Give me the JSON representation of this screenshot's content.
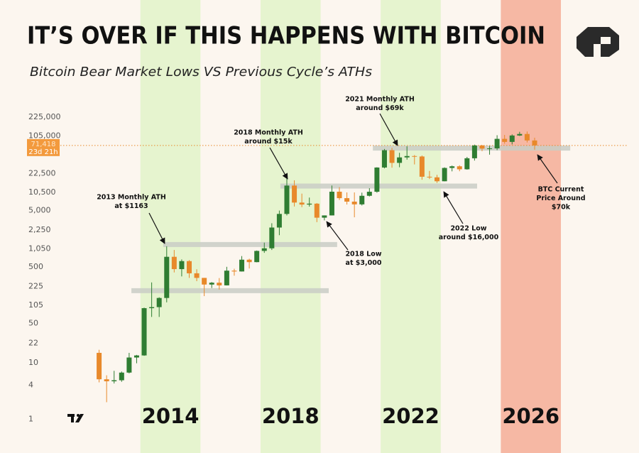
{
  "chart_data": {
    "type": "candlestick",
    "title": "IT’S OVER IF THIS HAPPENS WITH BITCOIN",
    "subtitle": "Bitcoin Bear Market Lows VS Previous Cycle’s ATHs",
    "log_scale": true,
    "ylim": [
      0.6,
      350000
    ],
    "yticks": [
      1,
      4,
      10,
      22,
      50,
      105,
      225,
      500,
      {
        "value": 1050,
        "label": "1,050"
      },
      {
        "value": 2250,
        "label": "2,250"
      },
      {
        "value": 5000,
        "label": "5,000"
      },
      {
        "value": 10500,
        "label": "10,500"
      },
      {
        "value": 22500,
        "label": "22,500"
      },
      {
        "value": 105000,
        "label": "105,000"
      },
      {
        "value": 225000,
        "label": "225,000"
      }
    ],
    "xlim": [
      2009.2,
      2029.6
    ],
    "up_color": "#2f7d32",
    "down_color": "#e8892b",
    "x": [
      2011.625,
      2011.875,
      2012.125,
      2012.375,
      2012.625,
      2012.875,
      2013.125,
      2013.375,
      2013.625,
      2013.875,
      2014.125,
      2014.375,
      2014.625,
      2014.875,
      2015.125,
      2015.375,
      2015.625,
      2015.875,
      2016.125,
      2016.375,
      2016.625,
      2016.875,
      2017.125,
      2017.375,
      2017.625,
      2017.875,
      2018.125,
      2018.375,
      2018.625,
      2018.875,
      2019.125,
      2019.375,
      2019.625,
      2019.875,
      2020.125,
      2020.375,
      2020.625,
      2020.875,
      2021.125,
      2021.375,
      2021.625,
      2021.875,
      2022.125,
      2022.375,
      2022.625,
      2022.875,
      2023.125,
      2023.375,
      2023.625,
      2023.875,
      2024.125,
      2024.375,
      2024.625,
      2024.875,
      2025.125,
      2025.375,
      2025.625,
      2025.875,
      2026.125
    ],
    "open": [
      15,
      5.1,
      4.7,
      4.9,
      6.7,
      12.4,
      13.5,
      93,
      97,
      141,
      757,
      458,
      635,
      386,
      320,
      244,
      263,
      236,
      430,
      416,
      673,
      609,
      963,
      1071,
      2500,
      4360,
      13880,
      6930,
      6390,
      6630,
      3740,
      4100,
      10800,
      8300,
      7200,
      6440,
      9140,
      10780,
      28990,
      58800,
      35040,
      43800,
      46300,
      45500,
      19900,
      19400,
      16540,
      28480,
      30470,
      26970,
      42280,
      71300,
      62700,
      63300,
      93400,
      82500,
      107100,
      114000,
      87500
    ],
    "high": [
      17,
      6,
      7.2,
      7,
      15,
      13.8,
      95,
      266,
      145,
      1163,
      1000,
      680,
      660,
      455,
      320,
      270,
      318,
      503,
      465,
      780,
      700,
      980,
      1350,
      2980,
      5000,
      19800,
      17200,
      9990,
      8500,
      6800,
      4100,
      13900,
      13000,
      10500,
      10500,
      10400,
      12480,
      29300,
      61800,
      64900,
      52900,
      69000,
      48200,
      47400,
      25200,
      21500,
      29200,
      31400,
      31800,
      44700,
      73800,
      72700,
      70000,
      108300,
      109600,
      112000,
      124500,
      126200,
      97900
    ],
    "low": [
      4.5,
      2,
      4.3,
      4.6,
      6.5,
      9.8,
      13.3,
      65,
      65,
      118,
      400,
      340,
      320,
      280,
      152,
      212,
      199,
      235,
      350,
      415,
      470,
      605,
      890,
      1000,
      1830,
      4100,
      5900,
      5750,
      5880,
      3120,
      3350,
      4100,
      7700,
      6400,
      3800,
      6150,
      8900,
      10370,
      28000,
      28800,
      29300,
      40000,
      32900,
      17600,
      18100,
      15500,
      16500,
      24800,
      24900,
      26550,
      38500,
      56500,
      49000,
      58900,
      76600,
      74400,
      105000,
      80600,
      60000
    ],
    "close": [
      5.1,
      4.7,
      4.9,
      6.7,
      12.4,
      13.5,
      93,
      97,
      141,
      757,
      458,
      635,
      386,
      320,
      244,
      263,
      236,
      430,
      416,
      673,
      609,
      963,
      1071,
      2500,
      4360,
      13880,
      6930,
      6390,
      6630,
      3740,
      4100,
      10800,
      8300,
      7200,
      6440,
      9140,
      10780,
      28990,
      58800,
      35040,
      43800,
      46300,
      45500,
      19900,
      19400,
      16540,
      28480,
      30470,
      26970,
      42280,
      71300,
      62700,
      63300,
      93400,
      82500,
      107100,
      114000,
      87500,
      71418
    ],
    "bands": [
      {
        "label": "2014",
        "from": 2013,
        "to": 2015,
        "color": "#e6f4cf"
      },
      {
        "label": "2018",
        "from": 2017,
        "to": 2019,
        "color": "#e6f4cf"
      },
      {
        "label": "2022",
        "from": 2021,
        "to": 2023,
        "color": "#e6f4cf"
      },
      {
        "label": "2026",
        "from": 2025,
        "to": 2027,
        "color": "#f6b8a4"
      }
    ],
    "levels": [
      {
        "value": 1250,
        "from": 2013.76,
        "to": 2019.55
      },
      {
        "value": 190,
        "from": 2012.7,
        "to": 2019.27
      },
      {
        "value": 13600,
        "from": 2017.66,
        "to": 2024.21
      },
      {
        "value": 64000,
        "from": 2020.74,
        "to": 2027.31
      }
    ],
    "current_price": {
      "value": 71418,
      "label": "71,418",
      "countdown": "23d 21h"
    },
    "annotations": [
      {
        "lines": [
          "2013 Monthly ATH",
          "at $1163"
        ]
      },
      {
        "lines": [
          "2018 Monthly ATH",
          "around $15k"
        ]
      },
      {
        "lines": [
          "2021 Monthly ATH",
          "around $69k"
        ]
      },
      {
        "lines": [
          "2018 Low",
          "at $3,000"
        ]
      },
      {
        "lines": [
          "2022 Low",
          "around $16,000"
        ]
      },
      {
        "lines": [
          "BTC Current",
          "Price Around",
          "$70k"
        ]
      }
    ]
  }
}
